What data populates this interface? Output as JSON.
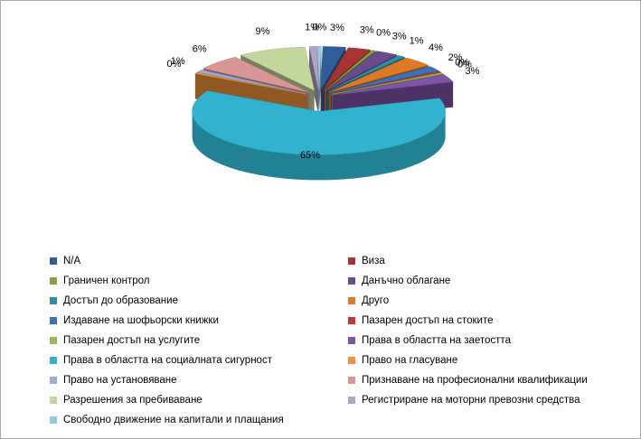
{
  "chart_data": {
    "type": "pie",
    "style": "3d-exploded",
    "categories": [
      "N/A",
      "Виза",
      "Граничен контрол",
      "Данъчно облагане",
      "Достъп до образование",
      "Друго",
      "Издаване на шофьорски  книжки",
      "Пазарен достъп  на стоките",
      "Пазарен достъп на услугите",
      "Права в областта на заетостта",
      "Права в областта на социалната сигурност",
      "Право на гласуване",
      "Право на установяване",
      "Признаване на професионални квалификации",
      "Разрешения  за пребиваване",
      "Регистриране на моторни превозни средства",
      "Свободно движение  на капитали и плащания"
    ],
    "values": [
      3,
      3,
      0,
      3,
      1,
      4,
      2,
      0,
      0,
      3,
      65,
      0,
      1,
      6,
      9,
      1,
      0
    ],
    "labels": [
      "3%",
      "3%",
      "0%",
      "3%",
      "1%",
      "4%",
      "2%",
      "0%",
      "0%",
      "3%",
      "65%",
      "0%",
      "1%",
      "6%",
      "9%",
      "1%",
      "0%"
    ],
    "colors": [
      "#2e5d9a",
      "#a73432",
      "#86a33d",
      "#6a4b8d",
      "#2f8ea6",
      "#de7a25",
      "#3c72b8",
      "#c0392b",
      "#9bbb59",
      "#7f54a8",
      "#31b3cf",
      "#f0923a",
      "#95aedb",
      "#d99694",
      "#c3d69b",
      "#b3a2c7",
      "#93cddd"
    ],
    "legend_position": "bottom"
  }
}
